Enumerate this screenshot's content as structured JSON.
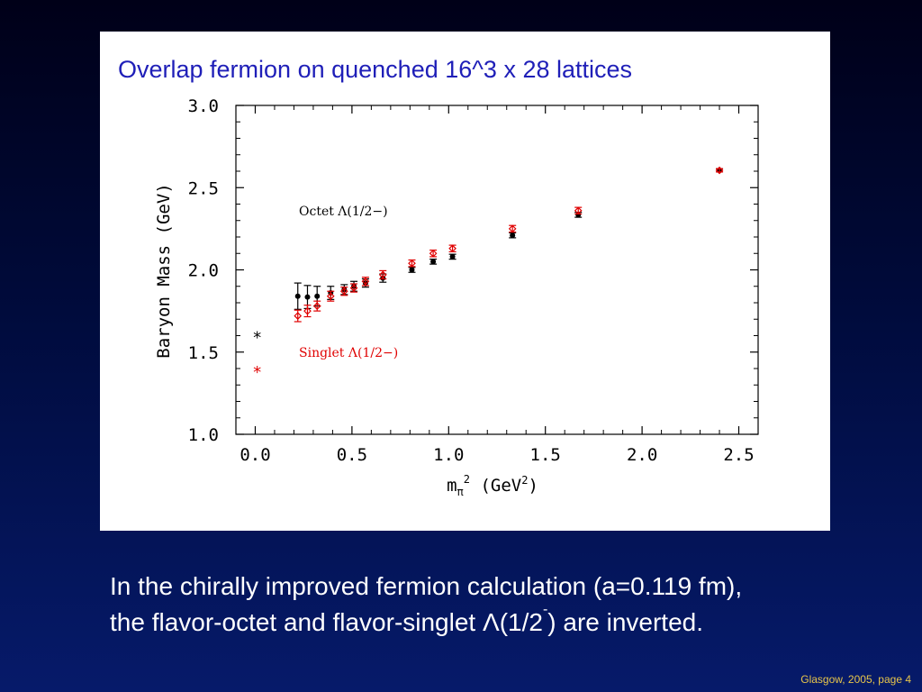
{
  "title": "Overlap fermion on quenched 16^3 x 28 lattices",
  "chart_data": {
    "type": "scatter",
    "title": "Overlap fermion on quenched 16^3 x 28 lattices",
    "ylabel": "Baryon Mass (GeV)",
    "xlabel_parts": {
      "m": "m",
      "sub": "π",
      "sup": "2",
      "unit_open": " (GeV",
      "unit_sup": "2",
      "unit_close": ")"
    },
    "xlim": [
      -0.1,
      2.6
    ],
    "ylim": [
      1.0,
      3.0
    ],
    "xticks": [
      0.0,
      0.5,
      1.0,
      1.5,
      2.0,
      2.5
    ],
    "xtick_labels": [
      "0.0",
      "0.5",
      "1.0",
      "1.5",
      "2.0",
      "2.5"
    ],
    "yticks": [
      1.0,
      1.5,
      2.0,
      2.5,
      3.0
    ],
    "ytick_labels": [
      "1.0",
      "1.5",
      "2.0",
      "2.5",
      "3.0"
    ],
    "series": [
      {
        "name": "Octet Λ(1/2−)",
        "color": "#000000",
        "marker": "filled-circle",
        "points": [
          {
            "x": 0.22,
            "y": 1.84,
            "err": 0.08
          },
          {
            "x": 0.27,
            "y": 1.835,
            "err": 0.07
          },
          {
            "x": 0.32,
            "y": 1.84,
            "err": 0.06
          },
          {
            "x": 0.39,
            "y": 1.86,
            "err": 0.04
          },
          {
            "x": 0.46,
            "y": 1.88,
            "err": 0.03
          },
          {
            "x": 0.51,
            "y": 1.9,
            "err": 0.03
          },
          {
            "x": 0.57,
            "y": 1.92,
            "err": 0.025
          },
          {
            "x": 0.66,
            "y": 1.95,
            "err": 0.025
          },
          {
            "x": 0.81,
            "y": 2.0,
            "err": 0.015
          },
          {
            "x": 0.92,
            "y": 2.05,
            "err": 0.015
          },
          {
            "x": 1.02,
            "y": 2.08,
            "err": 0.015
          },
          {
            "x": 1.33,
            "y": 2.21,
            "err": 0.015
          },
          {
            "x": 1.67,
            "y": 2.335,
            "err": 0.015
          },
          {
            "x": 2.4,
            "y": 2.605,
            "err": 0.01
          }
        ],
        "chiral_point": {
          "x": 0.01,
          "y": 1.6
        }
      },
      {
        "name": "Singlet Λ(1/2−)",
        "color": "#e00000",
        "marker": "open-diamond",
        "points": [
          {
            "x": 0.22,
            "y": 1.72,
            "err": 0.035
          },
          {
            "x": 0.27,
            "y": 1.75,
            "err": 0.035
          },
          {
            "x": 0.32,
            "y": 1.78,
            "err": 0.03
          },
          {
            "x": 0.39,
            "y": 1.84,
            "err": 0.03
          },
          {
            "x": 0.46,
            "y": 1.87,
            "err": 0.025
          },
          {
            "x": 0.51,
            "y": 1.89,
            "err": 0.025
          },
          {
            "x": 0.57,
            "y": 1.93,
            "err": 0.025
          },
          {
            "x": 0.66,
            "y": 1.97,
            "err": 0.025
          },
          {
            "x": 0.81,
            "y": 2.04,
            "err": 0.02
          },
          {
            "x": 0.92,
            "y": 2.1,
            "err": 0.02
          },
          {
            "x": 1.02,
            "y": 2.13,
            "err": 0.02
          },
          {
            "x": 1.33,
            "y": 2.25,
            "err": 0.02
          },
          {
            "x": 1.67,
            "y": 2.36,
            "err": 0.02
          },
          {
            "x": 2.4,
            "y": 2.605,
            "err": 0.01
          }
        ],
        "chiral_point": {
          "x": 0.01,
          "y": 1.39
        }
      }
    ],
    "annotations": [
      {
        "text": "Octet Λ(1/2−)",
        "color": "#000000"
      },
      {
        "text": "Singlet Λ(1/2−)",
        "color": "#e00000"
      }
    ],
    "grid": false
  },
  "body": {
    "line1": "In the chirally improved fermion calculation (a=0.119 fm),",
    "line2_pre": "the flavor-octet and flavor-singlet Λ(1/2",
    "line2_sup": "-",
    "line2_post": ") are inverted."
  },
  "footer": "Glasgow, 2005,  page 4"
}
